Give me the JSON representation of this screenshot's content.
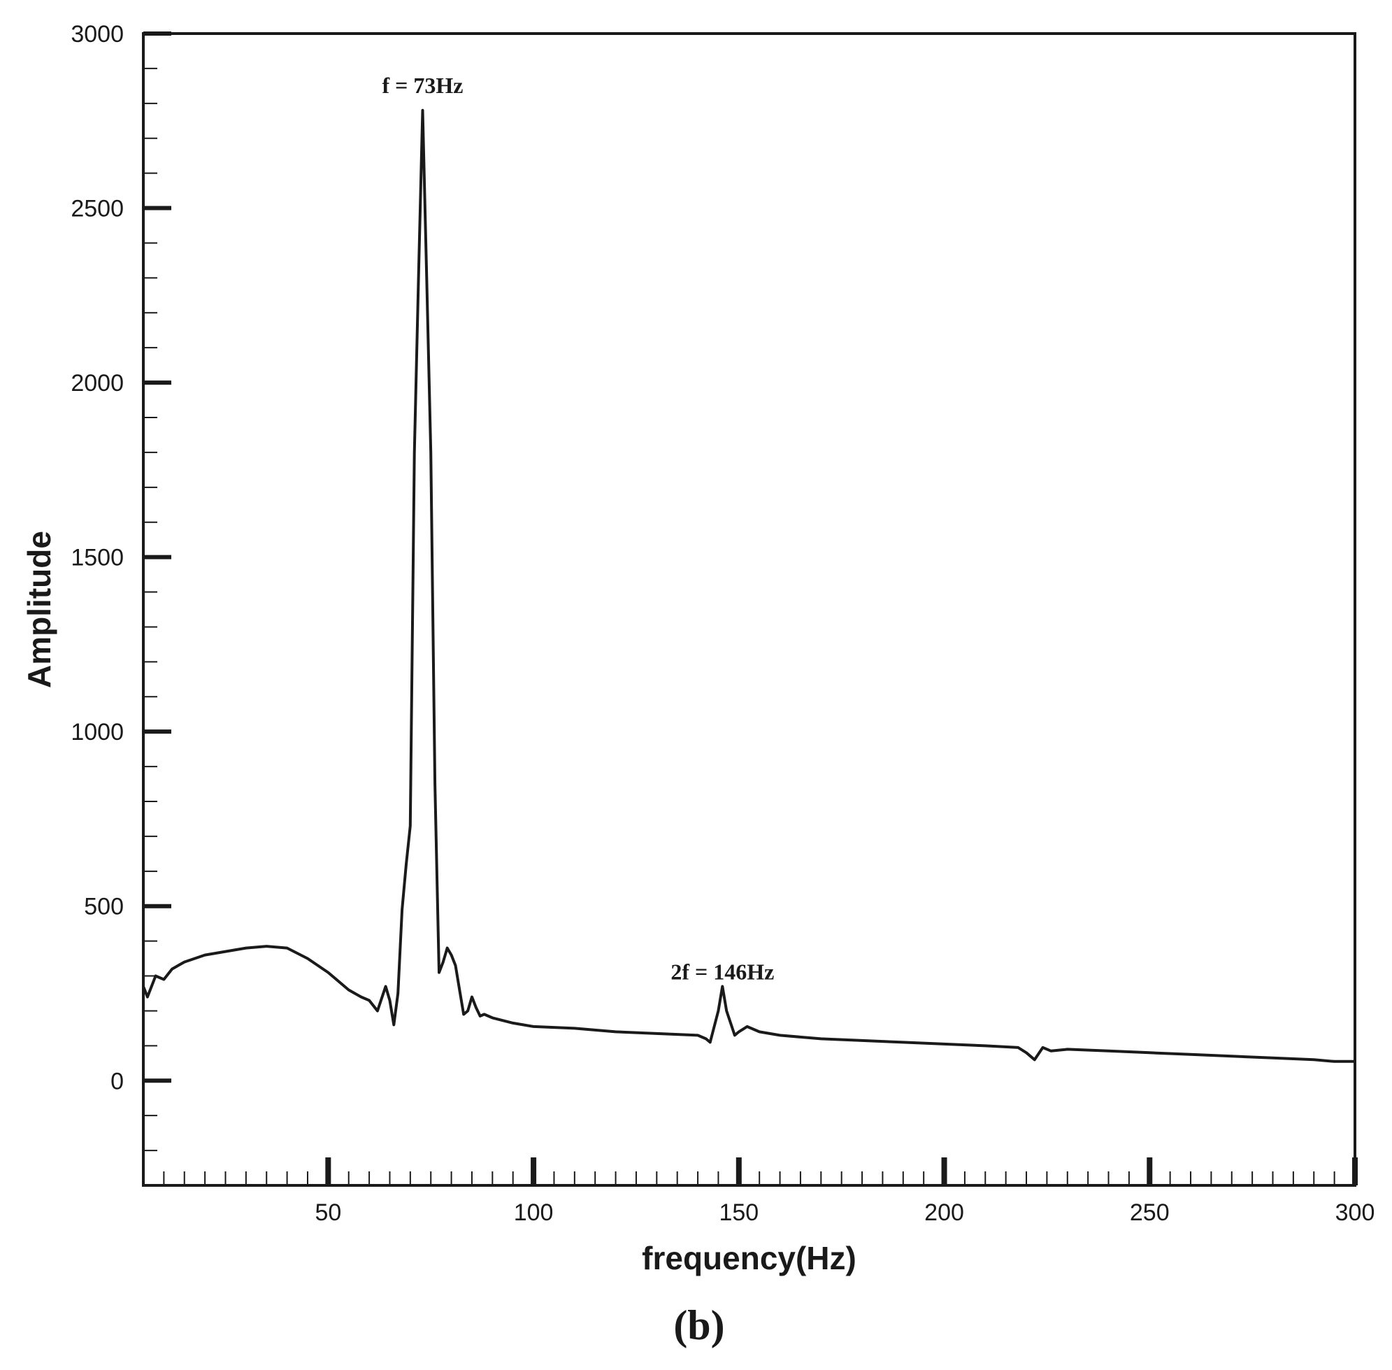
{
  "chart_data": {
    "type": "line",
    "xlabel": "frequency(Hz)",
    "ylabel": "Amplitude",
    "panel_label": "(b)",
    "xlim": [
      5,
      300
    ],
    "ylim": [
      -300,
      3000
    ],
    "x_ticks": [
      50,
      100,
      150,
      200,
      250,
      300
    ],
    "y_ticks": [
      0,
      500,
      1000,
      1500,
      2000,
      2500,
      3000
    ],
    "x_minor_step": 5,
    "y_minor_step": 100,
    "grid": false,
    "line_color": "#1a1a1a",
    "annotations": [
      {
        "text": "f = 73Hz",
        "x": 73,
        "y": 2830
      },
      {
        "text": "2f = 146Hz",
        "x": 146,
        "y": 290
      }
    ],
    "series": [
      {
        "x": [
          5,
          6,
          8,
          10,
          12,
          15,
          20,
          25,
          30,
          35,
          40,
          45,
          50,
          55,
          58,
          60,
          62,
          64,
          65,
          66,
          67,
          68,
          69,
          70,
          71,
          72,
          73,
          74,
          75,
          76,
          77,
          78,
          79,
          80,
          81,
          82,
          83,
          84,
          85,
          86,
          87,
          88,
          90,
          95,
          100,
          110,
          120,
          130,
          140,
          142,
          143,
          145,
          146,
          147,
          149,
          150,
          152,
          155,
          160,
          170,
          180,
          190,
          200,
          210,
          218,
          220,
          222,
          224,
          226,
          230,
          240,
          250,
          260,
          270,
          280,
          290,
          295,
          300
        ],
        "y": [
          270,
          240,
          300,
          290,
          320,
          340,
          360,
          370,
          380,
          385,
          380,
          350,
          310,
          260,
          240,
          230,
          200,
          270,
          230,
          160,
          250,
          490,
          620,
          730,
          1800,
          2300,
          2780,
          2300,
          1800,
          850,
          310,
          340,
          380,
          360,
          330,
          260,
          190,
          200,
          240,
          210,
          185,
          190,
          180,
          165,
          155,
          150,
          140,
          135,
          130,
          120,
          110,
          200,
          270,
          200,
          130,
          140,
          155,
          140,
          130,
          120,
          115,
          110,
          105,
          100,
          95,
          80,
          60,
          95,
          85,
          90,
          85,
          80,
          75,
          70,
          65,
          60,
          55,
          55
        ]
      }
    ]
  }
}
